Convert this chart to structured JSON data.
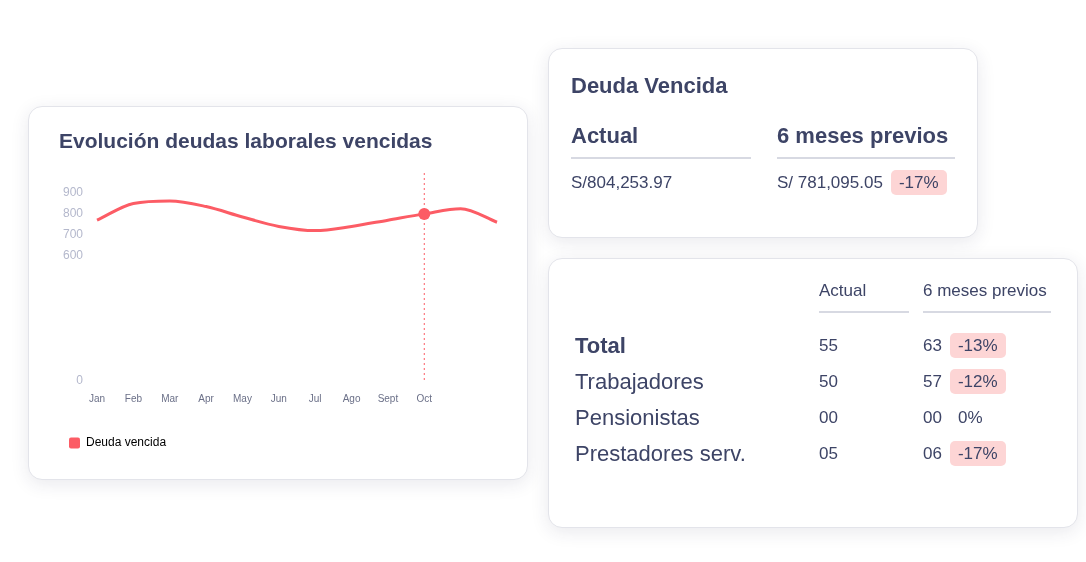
{
  "chart_data": [
    {
      "type": "line",
      "title": "Evolución deudas laborales vencidas",
      "categories": [
        "Jan",
        "Feb",
        "Mar",
        "Apr",
        "May",
        "Jun",
        "Jul",
        "Ago",
        "Sept",
        "Oct",
        null,
        null
      ],
      "series": [
        {
          "name": "Deuda vencida",
          "color": "#fc5c65",
          "values": [
            770,
            850,
            862,
            835,
            785,
            740,
            720,
            740,
            770,
            800,
            825,
            760
          ]
        }
      ],
      "ylim": [
        0,
        900
      ],
      "yticks": [
        0,
        600,
        700,
        800,
        900
      ],
      "grid": false,
      "legend": "bottom left",
      "marker": "none",
      "ref_lines": [
        {
          "axis": "x",
          "value": "Oct",
          "color": "#fc5c65",
          "line_style": "dotted"
        }
      ]
    },
    {
      "type": "other",
      "title": "Deuda Vencida",
      "annotations": [
        "Actual",
        "6 meses previos",
        "S/804,253.97",
        "S/ 781,095.05",
        "-17%"
      ]
    },
    {
      "type": "other",
      "annotations": [
        "Actual",
        "6 meses previos",
        "Total",
        "55",
        "63",
        "-13%",
        "Trabajadores",
        "50",
        "57",
        "-12%",
        "Pensionistas",
        "00",
        "00",
        "0%",
        "Prestadores serv.",
        "05",
        "06",
        "-17%"
      ]
    }
  ]
}
